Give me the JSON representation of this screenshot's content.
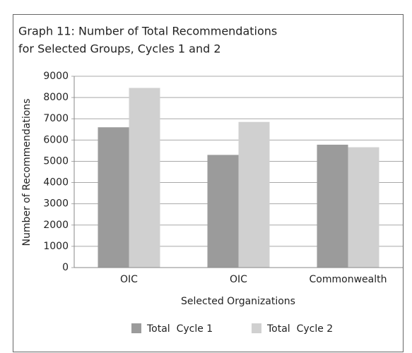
{
  "chart_data": {
    "type": "bar",
    "title": [
      "Graph 11: Number of Total Recommendations",
      "for Selected Groups, Cycles 1 and 2"
    ],
    "categories": [
      "OIC",
      "OIC",
      "Commonwealth"
    ],
    "series": [
      {
        "name": "Total  Cycle 1",
        "color": "#9b9b9b",
        "values": [
          6600,
          5300,
          5780
        ]
      },
      {
        "name": "Total  Cycle 2",
        "color": "#d0d0d0",
        "values": [
          8450,
          6850,
          5660
        ]
      }
    ],
    "ylim": [
      0,
      9000
    ],
    "yticks": [
      0,
      1000,
      2000,
      3000,
      4000,
      5000,
      6000,
      7000,
      8000,
      9000
    ],
    "ylabel": "Number of Recommendations",
    "xlabel": "Selected Organizations",
    "grid": true,
    "legend": "bottom"
  }
}
